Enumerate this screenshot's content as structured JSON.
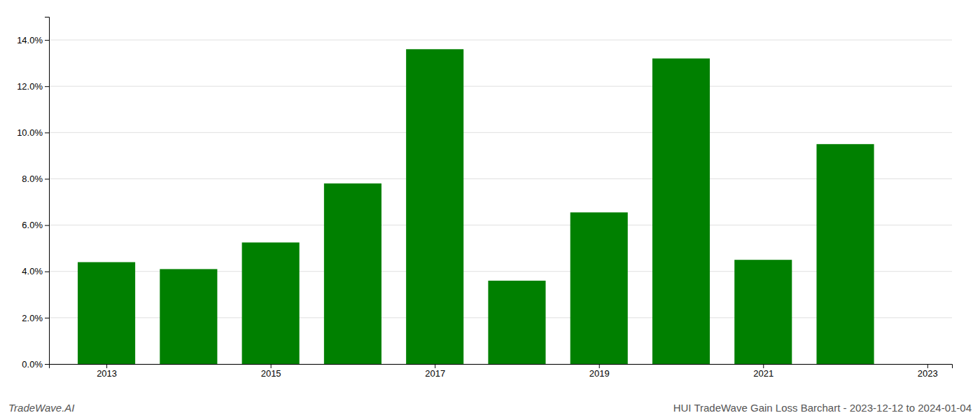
{
  "chart_data": {
    "type": "bar",
    "title": "HUI TradeWave Gain Loss Barchart - 2023-12-12 to 2024-01-04",
    "annotations": [
      "TradeWave.AI"
    ],
    "x": [
      2013,
      2014,
      2015,
      2016,
      2017,
      2018,
      2019,
      2020,
      2021,
      2022
    ],
    "values": [
      0.044,
      0.041,
      0.0525,
      0.078,
      0.136,
      0.036,
      0.0655,
      0.132,
      0.045,
      0.095
    ],
    "color": "#008000",
    "xlim": [
      2012.3,
      2023.3
    ],
    "xticks": [
      2013,
      2015,
      2017,
      2019,
      2021,
      2023
    ],
    "ylim": [
      0,
      0.15
    ],
    "yticks": [
      {
        "value": 0.0,
        "label": "0.0%"
      },
      {
        "value": 0.02,
        "label": "2.0%"
      },
      {
        "value": 0.04,
        "label": "4.0%"
      },
      {
        "value": 0.06,
        "label": "6.0%"
      },
      {
        "value": 0.08,
        "label": "8.0%"
      },
      {
        "value": 0.1,
        "label": "10.0%"
      },
      {
        "value": 0.12,
        "label": "12.0%"
      },
      {
        "value": 0.14,
        "label": "14.0%"
      }
    ],
    "grid": true
  }
}
